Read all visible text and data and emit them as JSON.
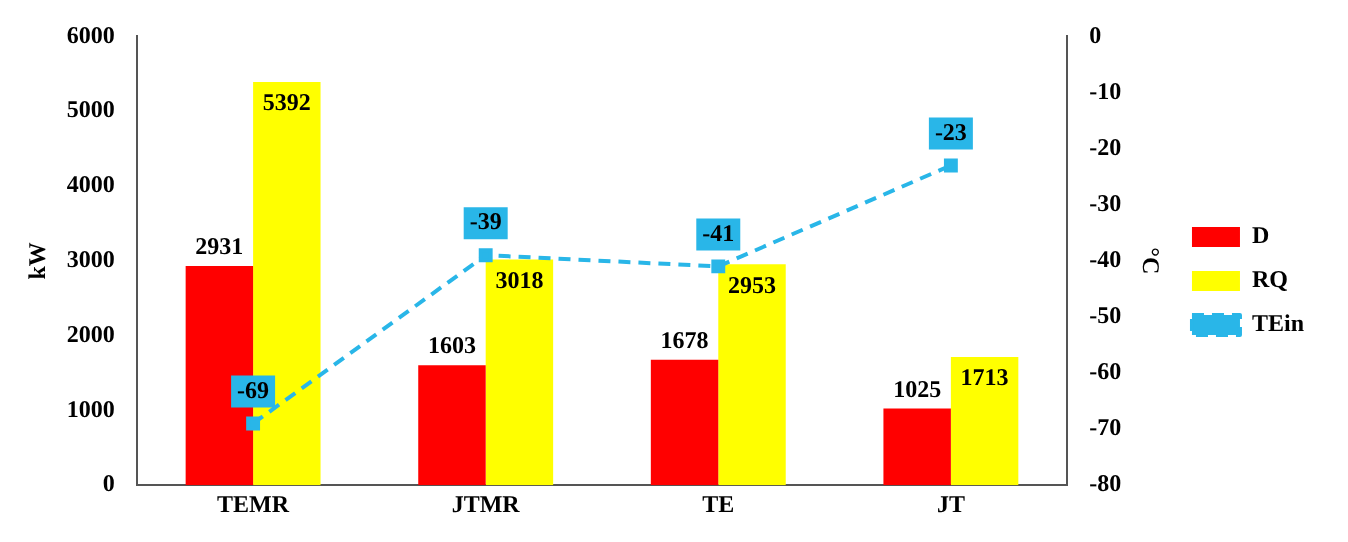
{
  "chart_data": {
    "type": "bar",
    "xlabel": null,
    "ylabel": "kW",
    "y2label": "°C",
    "categories": [
      "TEMR",
      "JTMR",
      "TE",
      "JT"
    ],
    "series": [
      {
        "name": "D",
        "color": "#ff0000",
        "values": [
          2931,
          1603,
          1678,
          1025
        ]
      },
      {
        "name": "RQ",
        "color": "#ffff00",
        "values": [
          5392,
          3018,
          2953,
          1713
        ]
      },
      {
        "name": "TEin",
        "type": "line",
        "axis": "y2",
        "color": "#29b6e8",
        "values": [
          -69,
          -39,
          -41,
          -23
        ],
        "marker": "square",
        "line_style": "dashed"
      }
    ],
    "ylim": [
      0,
      6000
    ],
    "yticks": [
      0,
      1000,
      2000,
      3000,
      4000,
      5000,
      6000
    ],
    "y2lim": [
      -80,
      0
    ],
    "y2ticks": [
      -80,
      -70,
      -60,
      -50,
      -40,
      -30,
      -20,
      -10,
      0
    ],
    "data_labels": true,
    "legend": "right",
    "grid": false
  }
}
